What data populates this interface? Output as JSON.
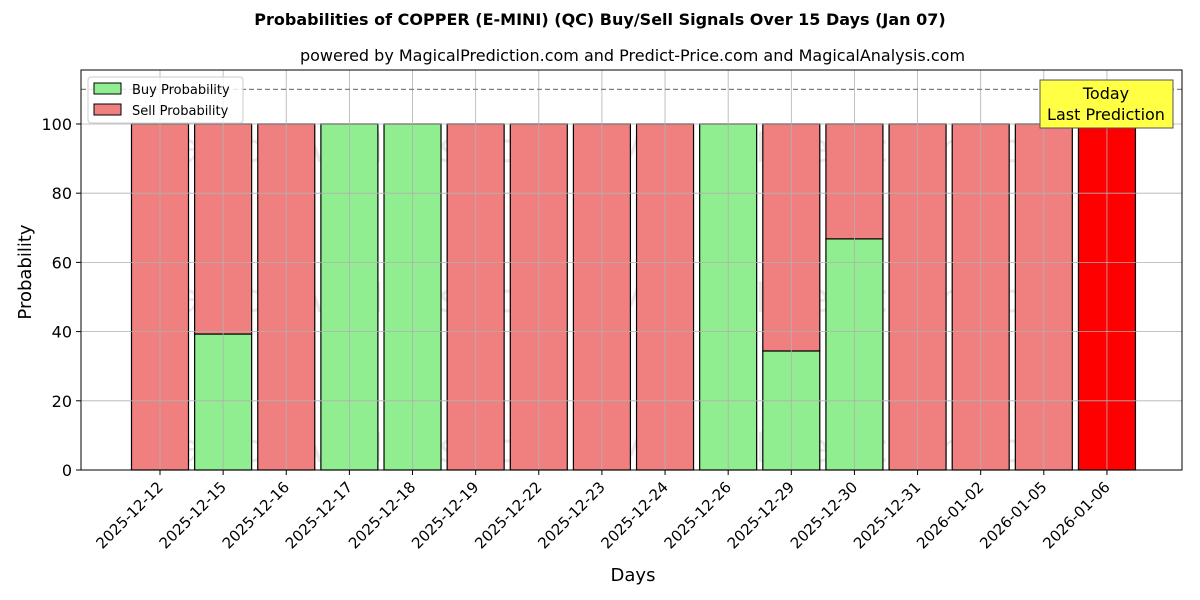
{
  "title": "Probabilities of COPPER (E-MINI) (QC) Buy/Sell Signals Over 15 Days (Jan 07)",
  "subtitle": "powered by MagicalPrediction.com and Predict-Price.com and MagicalAnalysis.com",
  "colors": {
    "buy": "#90ee90",
    "sell": "#f08080",
    "today": "#ff0000",
    "annotation_bg": "#ffff44"
  },
  "legend": {
    "buy_label": "Buy Probability",
    "sell_label": "Sell Probability"
  },
  "annotation": {
    "line1": "Today",
    "line2": "Last Prediction"
  },
  "watermarks": [
    "MagicalAnalysis.com",
    "MagicalPrediction.com"
  ],
  "chart_data": {
    "type": "bar",
    "stacked": true,
    "title": "Probabilities of COPPER (E-MINI) (QC) Buy/Sell Signals Over 15 Days (Jan 07)",
    "subtitle": "powered by MagicalPrediction.com and Predict-Price.com and MagicalAnalysis.com",
    "xlabel": "Days",
    "ylabel": "Probability",
    "ylim": [
      0,
      115
    ],
    "yticks": [
      0,
      20,
      40,
      60,
      80,
      100
    ],
    "grid": true,
    "legend_position": "upper left",
    "reference_line": 110,
    "categories": [
      "2025-12-12",
      "2025-12-15",
      "2025-12-16",
      "2025-12-17",
      "2025-12-18",
      "2025-12-19",
      "2025-12-22",
      "2025-12-23",
      "2025-12-24",
      "2025-12-26",
      "2025-12-29",
      "2025-12-30",
      "2025-12-31",
      "2026-01-02",
      "2026-01-05",
      "2026-01-06"
    ],
    "series": [
      {
        "name": "Buy Probability",
        "values": [
          0,
          39.3,
          0,
          100,
          100,
          0,
          0,
          0,
          0,
          100,
          34.4,
          66.8,
          0,
          0,
          0,
          0
        ]
      },
      {
        "name": "Sell Probability",
        "values": [
          100,
          60.7,
          100,
          0,
          0,
          100,
          100,
          100,
          100,
          0,
          65.6,
          33.2,
          100,
          100,
          100,
          100
        ]
      }
    ],
    "highlight_last": true
  }
}
